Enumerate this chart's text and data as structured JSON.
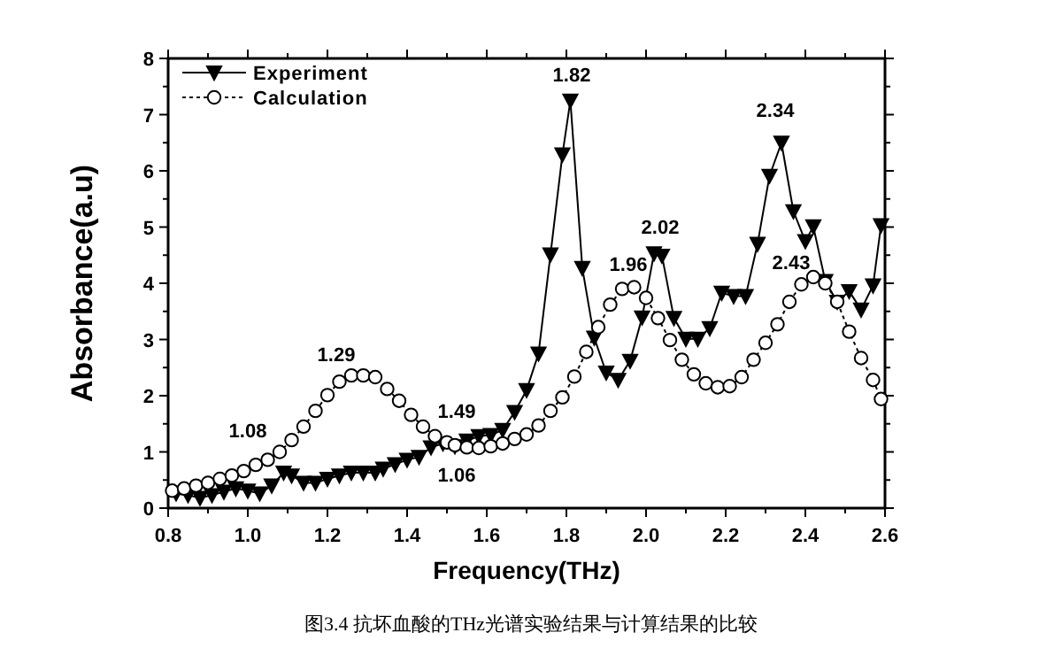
{
  "chart_data": {
    "type": "line",
    "xlabel": "Frequency(THz)",
    "ylabel": "Absorbance(a.u)",
    "xlim": [
      0.8,
      2.6
    ],
    "ylim": [
      0,
      8
    ],
    "xticks": [
      {
        "value": 0.8,
        "label": "0.8"
      },
      {
        "value": 0.9,
        "label": null
      },
      {
        "value": 1.0,
        "label": "1.0"
      },
      {
        "value": 1.1,
        "label": null
      },
      {
        "value": 1.2,
        "label": "1.2"
      },
      {
        "value": 1.3,
        "label": null
      },
      {
        "value": 1.4,
        "label": "1.4"
      },
      {
        "value": 1.5,
        "label": null
      },
      {
        "value": 1.6,
        "label": "1.6"
      },
      {
        "value": 1.7,
        "label": null
      },
      {
        "value": 1.8,
        "label": "1.8"
      },
      {
        "value": 1.9,
        "label": null
      },
      {
        "value": 2.0,
        "label": "2.0"
      },
      {
        "value": 2.1,
        "label": null
      },
      {
        "value": 2.2,
        "label": "2.2"
      },
      {
        "value": 2.3,
        "label": null
      },
      {
        "value": 2.4,
        "label": "2.4"
      },
      {
        "value": 2.5,
        "label": null
      },
      {
        "value": 2.6,
        "label": "2.6"
      }
    ],
    "yticks": [
      0,
      {
        "value": 0.5,
        "label": null
      },
      1,
      {
        "value": 1.5,
        "label": null
      },
      2,
      {
        "value": 2.5,
        "label": null
      },
      3,
      {
        "value": 3.5,
        "label": null
      },
      4,
      {
        "value": 4.5,
        "label": null
      },
      5,
      {
        "value": 5.5,
        "label": null
      },
      6,
      {
        "value": 6.5,
        "label": null
      },
      7,
      {
        "value": 7.5,
        "label": null
      },
      8
    ],
    "legend": "top left",
    "series": [
      {
        "name": "Experiment",
        "color": "#000000",
        "marker": "triangle",
        "line_style": "solid",
        "x": [
          0.82,
          0.85,
          0.88,
          0.91,
          0.94,
          0.97,
          1.0,
          1.03,
          1.06,
          1.09,
          1.11,
          1.14,
          1.17,
          1.2,
          1.23,
          1.26,
          1.29,
          1.32,
          1.34,
          1.37,
          1.4,
          1.43,
          1.46,
          1.49,
          1.52,
          1.55,
          1.58,
          1.61,
          1.64,
          1.67,
          1.7,
          1.73,
          1.76,
          1.79,
          1.81,
          1.84,
          1.87,
          1.9,
          1.93,
          1.96,
          1.99,
          2.02,
          2.04,
          2.07,
          2.1,
          2.13,
          2.16,
          2.19,
          2.22,
          2.25,
          2.28,
          2.31,
          2.34,
          2.37,
          2.4,
          2.42,
          2.45,
          2.48,
          2.51,
          2.54,
          2.57,
          2.59
        ],
        "values": [
          0.26,
          0.23,
          0.18,
          0.23,
          0.29,
          0.35,
          0.31,
          0.26,
          0.4,
          0.63,
          0.58,
          0.45,
          0.45,
          0.52,
          0.58,
          0.63,
          0.63,
          0.63,
          0.7,
          0.78,
          0.86,
          0.91,
          1.08,
          1.15,
          1.1,
          1.2,
          1.28,
          1.3,
          1.39,
          1.71,
          2.1,
          2.75,
          4.51,
          6.29,
          7.25,
          4.27,
          3.03,
          2.41,
          2.28,
          2.62,
          3.39,
          4.53,
          4.49,
          3.38,
          3.01,
          3.01,
          3.2,
          3.83,
          3.77,
          3.77,
          4.7,
          5.91,
          6.5,
          5.28,
          4.75,
          5.01,
          4.04,
          3.67,
          3.86,
          3.53,
          3.96,
          5.03
        ]
      },
      {
        "name": "Calculation",
        "color": "#000000",
        "marker": "circle",
        "line_style": "dotted",
        "x": [
          0.81,
          0.84,
          0.87,
          0.9,
          0.93,
          0.96,
          0.99,
          1.02,
          1.05,
          1.08,
          1.11,
          1.14,
          1.17,
          1.2,
          1.23,
          1.26,
          1.29,
          1.32,
          1.35,
          1.38,
          1.41,
          1.44,
          1.47,
          1.5,
          1.52,
          1.55,
          1.58,
          1.61,
          1.64,
          1.67,
          1.7,
          1.73,
          1.76,
          1.79,
          1.82,
          1.85,
          1.88,
          1.91,
          1.94,
          1.97,
          2.0,
          2.03,
          2.06,
          2.09,
          2.12,
          2.15,
          2.18,
          2.21,
          2.24,
          2.27,
          2.3,
          2.33,
          2.36,
          2.39,
          2.42,
          2.45,
          2.48,
          2.51,
          2.54,
          2.57,
          2.59
        ],
        "values": [
          0.31,
          0.35,
          0.4,
          0.45,
          0.52,
          0.58,
          0.66,
          0.77,
          0.86,
          1.0,
          1.21,
          1.45,
          1.73,
          2.01,
          2.25,
          2.36,
          2.36,
          2.33,
          2.12,
          1.91,
          1.66,
          1.45,
          1.28,
          1.17,
          1.12,
          1.08,
          1.07,
          1.1,
          1.15,
          1.23,
          1.31,
          1.47,
          1.73,
          1.97,
          2.34,
          2.78,
          3.22,
          3.62,
          3.9,
          3.93,
          3.74,
          3.38,
          2.99,
          2.64,
          2.38,
          2.22,
          2.15,
          2.17,
          2.33,
          2.64,
          2.94,
          3.27,
          3.67,
          3.98,
          4.11,
          4.0,
          3.67,
          3.14,
          2.67,
          2.28,
          1.94
        ]
      }
    ],
    "annotations": [
      "1.08",
      "1.29",
      "1.49",
      "1.06",
      "1.82",
      "1.96",
      "2.02",
      "2.34",
      "2.43",
      "图3.4  抗坏血酸的THz光谱实验结果与计算结果的比较"
    ]
  }
}
